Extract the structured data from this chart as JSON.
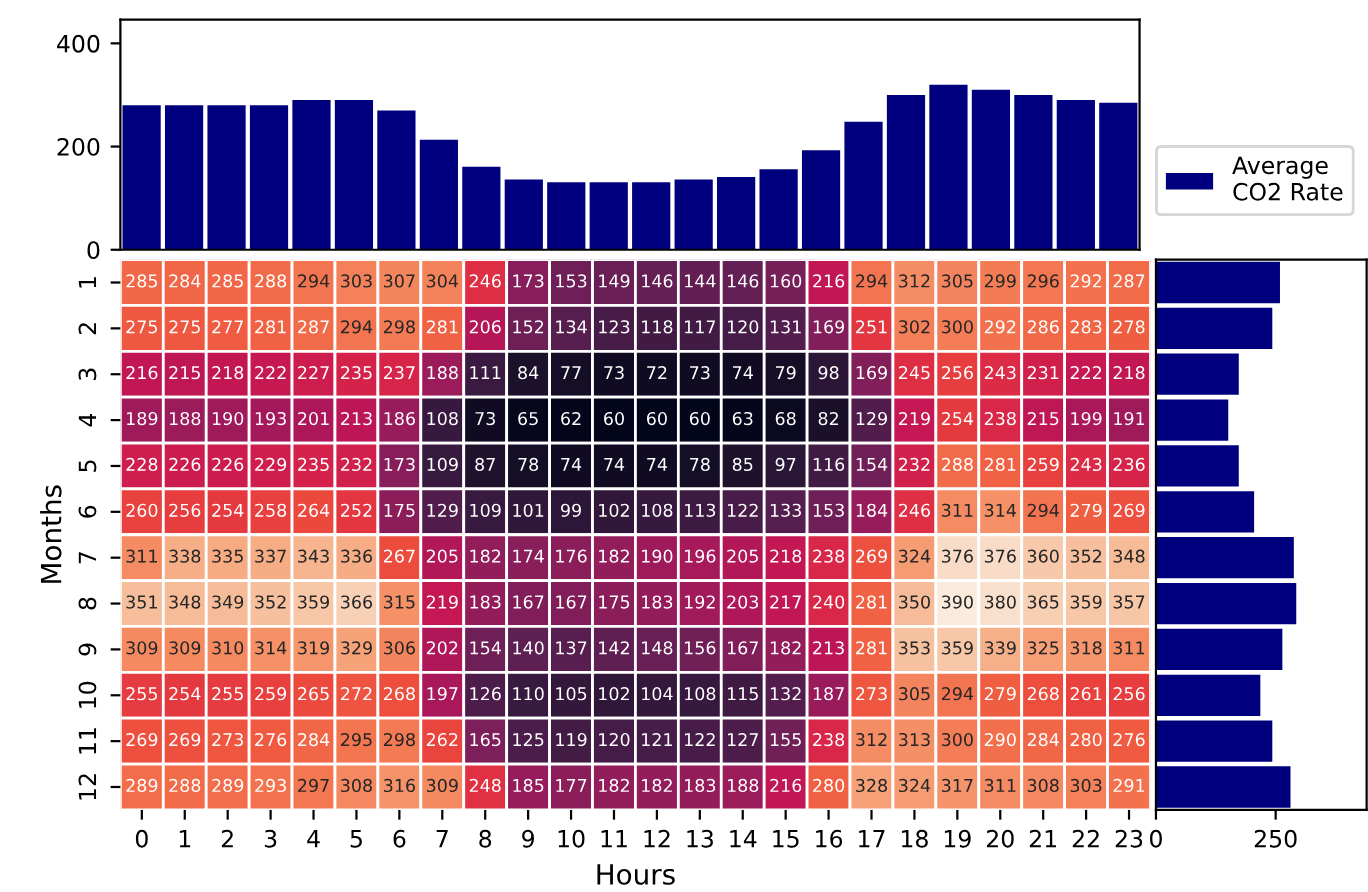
{
  "chart_data": [
    {
      "type": "bar",
      "categories": [
        null,
        null,
        null,
        null,
        null,
        null,
        null,
        null,
        null,
        null,
        null,
        null,
        null,
        null,
        null,
        null,
        null,
        null,
        null,
        null,
        null,
        null,
        null,
        null
      ],
      "series": [
        {
          "name": "Average\nCO2 Rate",
          "color": "#00007f",
          "values": [
            280,
            280,
            280,
            280,
            290,
            290,
            270,
            213,
            161,
            136,
            131,
            131,
            131,
            136,
            141,
            156,
            193,
            248,
            300,
            320,
            310,
            300,
            290,
            285
          ]
        }
      ],
      "ylim": [
        0,
        446
      ],
      "yticks": [
        0,
        200,
        400
      ],
      "tick_labels": "y",
      "legend": "bottom right",
      "grid": false
    },
    {
      "type": "heatmap",
      "xlabel": "Hours",
      "ylabel": "Months",
      "categories": [
        "0",
        "1",
        "2",
        "3",
        "4",
        "5",
        "6",
        "7",
        "8",
        "9",
        "10",
        "11",
        "12",
        "13",
        "14",
        "15",
        "16",
        "17",
        "18",
        "19",
        "20",
        "21",
        "22",
        "23"
      ],
      "y_categories": [
        "1",
        "2",
        "3",
        "4",
        "5",
        "6",
        "7",
        "8",
        "9",
        "10",
        "11",
        "12"
      ],
      "cells": [
        [
          285,
          284,
          285,
          288,
          294,
          303,
          307,
          304,
          246,
          173,
          153,
          149,
          146,
          144,
          146,
          160,
          216,
          294,
          312,
          305,
          299,
          296,
          292,
          287
        ],
        [
          275,
          275,
          277,
          281,
          287,
          294,
          298,
          281,
          206,
          152,
          134,
          123,
          118,
          117,
          120,
          131,
          169,
          251,
          302,
          300,
          292,
          286,
          283,
          278
        ],
        [
          216,
          215,
          218,
          222,
          227,
          235,
          237,
          188,
          111,
          84,
          77,
          73,
          72,
          73,
          74,
          79,
          98,
          169,
          245,
          256,
          243,
          231,
          222,
          218
        ],
        [
          189,
          188,
          190,
          193,
          201,
          213,
          186,
          108,
          73,
          65,
          62,
          60,
          60,
          60,
          63,
          68,
          82,
          129,
          219,
          254,
          238,
          215,
          199,
          191
        ],
        [
          228,
          226,
          226,
          229,
          235,
          232,
          173,
          109,
          87,
          78,
          74,
          74,
          74,
          78,
          85,
          97,
          116,
          154,
          232,
          288,
          281,
          259,
          243,
          236
        ],
        [
          260,
          256,
          254,
          258,
          264,
          252,
          175,
          129,
          109,
          101,
          99,
          102,
          108,
          113,
          122,
          133,
          153,
          184,
          246,
          311,
          314,
          294,
          279,
          269
        ],
        [
          311,
          338,
          335,
          337,
          343,
          336,
          267,
          205,
          182,
          174,
          176,
          182,
          190,
          196,
          205,
          218,
          238,
          269,
          324,
          376,
          376,
          360,
          352,
          348
        ],
        [
          351,
          348,
          349,
          352,
          359,
          366,
          315,
          219,
          183,
          167,
          167,
          175,
          183,
          192,
          203,
          217,
          240,
          281,
          350,
          390,
          380,
          365,
          359,
          357
        ],
        [
          309,
          309,
          310,
          314,
          319,
          329,
          306,
          202,
          154,
          140,
          137,
          142,
          148,
          156,
          167,
          182,
          213,
          281,
          353,
          359,
          339,
          325,
          318,
          311
        ],
        [
          255,
          254,
          255,
          259,
          265,
          272,
          268,
          197,
          126,
          110,
          105,
          102,
          104,
          108,
          115,
          132,
          187,
          273,
          305,
          294,
          279,
          268,
          261,
          256
        ],
        [
          269,
          269,
          273,
          276,
          284,
          295,
          298,
          262,
          165,
          125,
          119,
          120,
          121,
          122,
          127,
          155,
          238,
          312,
          313,
          300,
          290,
          284,
          280,
          276
        ],
        [
          289,
          288,
          289,
          293,
          297,
          308,
          316,
          309,
          248,
          185,
          177,
          182,
          182,
          183,
          188,
          216,
          280,
          328,
          324,
          317,
          311,
          308,
          303,
          291
        ]
      ],
      "data_labels": true
    },
    {
      "type": "bar",
      "orientation": "horizontal",
      "categories": [
        null,
        null,
        null,
        null,
        null,
        null,
        null,
        null,
        null,
        null,
        null,
        null
      ],
      "series": [
        {
          "color": "#00007f",
          "values": [
            259,
            243,
            173,
            151,
            173,
            205,
            288,
            293,
            264,
            218,
            243,
            281
          ]
        }
      ],
      "xlim": [
        0,
        440
      ],
      "xticks": [
        0,
        250
      ],
      "tick_labels": "x",
      "grid": false
    }
  ]
}
